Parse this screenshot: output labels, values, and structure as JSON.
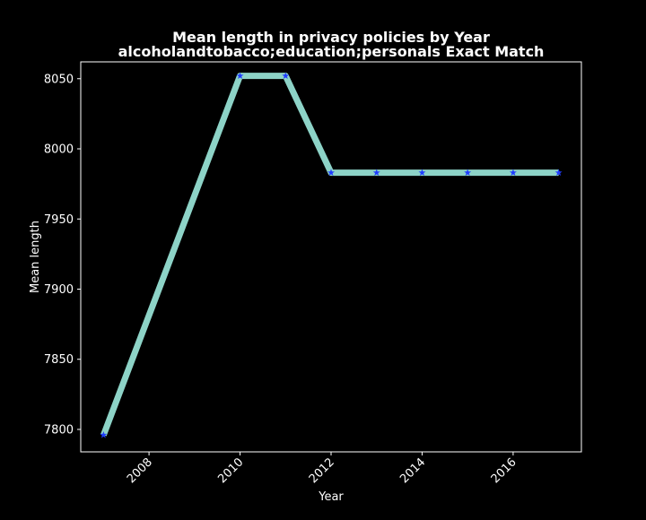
{
  "chart_data": {
    "type": "line",
    "title": "Mean length in privacy policies by Year",
    "subtitle": "alcoholandtobacco;education;personals Exact Match",
    "xlabel": "Year",
    "ylabel": "Mean length",
    "xlim": [
      2006.5,
      2017.5
    ],
    "ylim": [
      7784,
      8062
    ],
    "x_ticks": [
      2008,
      2010,
      2012,
      2014,
      2016
    ],
    "y_ticks": [
      7800,
      7850,
      7900,
      7950,
      8000,
      8050
    ],
    "grid": false,
    "series": [
      {
        "x": [
          2007,
          2010,
          2011,
          2012,
          2013,
          2014,
          2015,
          2016,
          2017
        ],
        "y": [
          7796,
          8052,
          8052,
          7983,
          7983,
          7983,
          7983,
          7983,
          7983
        ],
        "line_color": "#8dd3c7",
        "marker": "star",
        "marker_color": "#1f3cff"
      }
    ]
  },
  "colors": {
    "background": "#000000",
    "axes": "#ffffff",
    "text": "#ffffff"
  }
}
